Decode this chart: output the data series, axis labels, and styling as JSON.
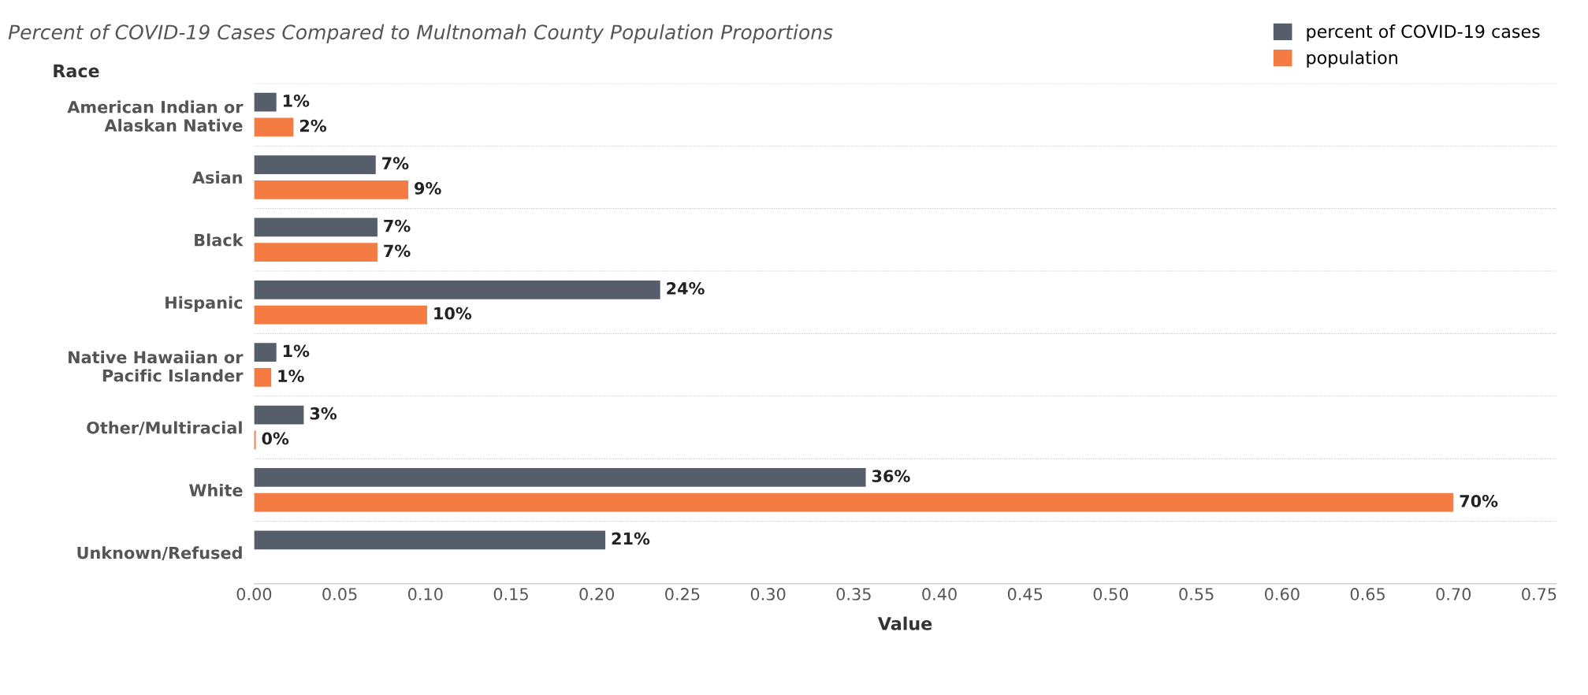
{
  "chart_data": {
    "type": "bar",
    "orientation": "horizontal",
    "title": "Percent of COVID-19 Cases Compared to Multnomah County Population Proportions",
    "xlabel": "Value",
    "ylabel": "Race",
    "categories": [
      "American Indian or\nAlaskan Native",
      "Asian",
      "Black",
      "Hispanic",
      "Native Hawaiian or\nPacific Islander",
      "Other/Multiracial",
      "White",
      "Unknown/Refused"
    ],
    "series": [
      {
        "name": "percent of COVID-19 cases",
        "color": "#565e6c",
        "values": [
          0.013,
          0.071,
          0.072,
          0.237,
          0.013,
          0.029,
          0.357,
          0.205
        ],
        "value_labels": [
          "1%",
          "7%",
          "7%",
          "24%",
          "1%",
          "3%",
          "36%",
          "21%"
        ]
      },
      {
        "name": "population",
        "color": "#f47b42",
        "values": [
          0.023,
          0.09,
          0.072,
          0.101,
          0.01,
          0.001,
          0.7,
          null
        ],
        "value_labels": [
          "2%",
          "9%",
          "7%",
          "10%",
          "1%",
          "0%",
          "70%",
          null
        ]
      }
    ],
    "xlim": [
      0,
      0.76
    ],
    "xticks": [
      {
        "value": 0,
        "label": "0.00"
      },
      0.05,
      {
        "value": 0.1,
        "label": "0.10"
      },
      0.15,
      {
        "value": 0.2,
        "label": "0.20"
      },
      0.25,
      {
        "value": 0.3,
        "label": "0.30"
      },
      0.35,
      {
        "value": 0.4,
        "label": "0.40"
      },
      0.45,
      {
        "value": 0.5,
        "label": "0.50"
      },
      0.55,
      {
        "value": 0.6,
        "label": "0.60"
      },
      0.65,
      {
        "value": 0.7,
        "label": "0.70"
      },
      0.75
    ],
    "legend": "top right"
  }
}
